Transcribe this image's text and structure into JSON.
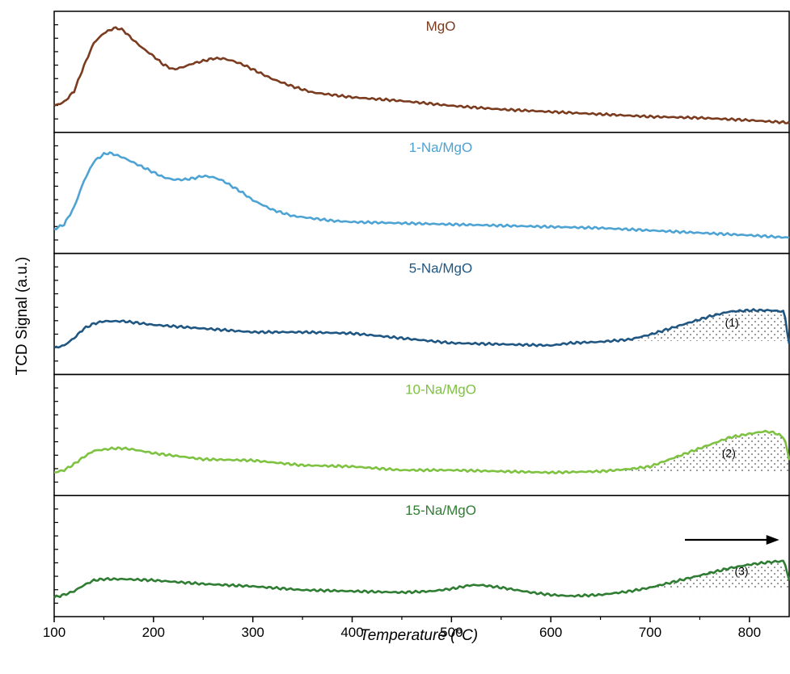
{
  "chart_data": {
    "type": "line",
    "title": "",
    "xlabel": "Temperature (°C)",
    "ylabel": "TCD Signal (a.u.)",
    "xlim": [
      100,
      840
    ],
    "xticks": [
      100,
      200,
      300,
      400,
      500,
      600,
      700,
      800
    ],
    "grid": false,
    "layout": "stacked panels",
    "arrow": {
      "from": 735,
      "to": 830,
      "direction": "right"
    },
    "series": [
      {
        "name": "MgO",
        "color": "#7a3b1f",
        "x": [
          100,
          110,
          120,
          130,
          140,
          150,
          160,
          165,
          170,
          180,
          190,
          200,
          210,
          220,
          230,
          240,
          250,
          260,
          270,
          280,
          290,
          300,
          320,
          340,
          360,
          380,
          400,
          450,
          500,
          550,
          600,
          650,
          700,
          750,
          800,
          840
        ],
        "y": [
          0.22,
          0.25,
          0.34,
          0.55,
          0.74,
          0.82,
          0.86,
          0.86,
          0.84,
          0.76,
          0.69,
          0.63,
          0.56,
          0.52,
          0.54,
          0.57,
          0.59,
          0.61,
          0.61,
          0.59,
          0.56,
          0.52,
          0.44,
          0.38,
          0.33,
          0.31,
          0.29,
          0.26,
          0.22,
          0.19,
          0.17,
          0.15,
          0.13,
          0.12,
          0.1,
          0.08
        ]
      },
      {
        "name": "1-Na/MgO",
        "color": "#4da3d3",
        "x": [
          100,
          110,
          120,
          130,
          140,
          150,
          155,
          160,
          170,
          180,
          190,
          200,
          210,
          220,
          230,
          240,
          250,
          260,
          270,
          280,
          290,
          300,
          320,
          340,
          360,
          380,
          400,
          450,
          500,
          550,
          600,
          650,
          700,
          750,
          800,
          840
        ],
        "y": [
          0.2,
          0.24,
          0.38,
          0.6,
          0.76,
          0.82,
          0.83,
          0.82,
          0.79,
          0.75,
          0.71,
          0.67,
          0.63,
          0.61,
          0.61,
          0.62,
          0.64,
          0.63,
          0.6,
          0.55,
          0.5,
          0.44,
          0.36,
          0.31,
          0.29,
          0.27,
          0.26,
          0.25,
          0.24,
          0.23,
          0.22,
          0.21,
          0.19,
          0.17,
          0.15,
          0.13
        ]
      },
      {
        "name": "5-Na/MgO",
        "color": "#1f5682",
        "x": [
          100,
          110,
          120,
          130,
          140,
          150,
          160,
          170,
          180,
          200,
          250,
          300,
          350,
          400,
          450,
          500,
          550,
          600,
          620,
          650,
          680,
          700,
          720,
          740,
          760,
          780,
          800,
          820,
          835,
          840
        ],
        "y": [
          0.22,
          0.24,
          0.3,
          0.38,
          0.42,
          0.44,
          0.44,
          0.44,
          0.43,
          0.41,
          0.38,
          0.35,
          0.35,
          0.34,
          0.3,
          0.26,
          0.25,
          0.24,
          0.26,
          0.27,
          0.29,
          0.33,
          0.38,
          0.43,
          0.48,
          0.52,
          0.53,
          0.53,
          0.52,
          0.25
        ]
      },
      {
        "name": "10-Na/MgO",
        "color": "#7ec241",
        "x": [
          100,
          110,
          120,
          130,
          140,
          150,
          160,
          170,
          180,
          200,
          250,
          300,
          350,
          400,
          450,
          500,
          550,
          600,
          650,
          680,
          700,
          720,
          740,
          760,
          780,
          800,
          815,
          825,
          835,
          840
        ],
        "y": [
          0.19,
          0.21,
          0.26,
          0.32,
          0.37,
          0.38,
          0.39,
          0.39,
          0.38,
          0.35,
          0.3,
          0.29,
          0.25,
          0.24,
          0.21,
          0.21,
          0.2,
          0.19,
          0.2,
          0.22,
          0.24,
          0.3,
          0.36,
          0.42,
          0.48,
          0.51,
          0.53,
          0.52,
          0.48,
          0.3
        ]
      },
      {
        "name": "15-Na/MgO",
        "color": "#2e7d32",
        "x": [
          100,
          110,
          120,
          130,
          140,
          150,
          160,
          170,
          200,
          250,
          300,
          350,
          400,
          450,
          480,
          500,
          520,
          530,
          550,
          580,
          600,
          620,
          650,
          680,
          700,
          720,
          740,
          760,
          780,
          800,
          820,
          835,
          840
        ],
        "y": [
          0.16,
          0.18,
          0.21,
          0.26,
          0.3,
          0.31,
          0.31,
          0.31,
          0.3,
          0.27,
          0.25,
          0.22,
          0.21,
          0.2,
          0.21,
          0.23,
          0.26,
          0.26,
          0.24,
          0.2,
          0.18,
          0.17,
          0.18,
          0.21,
          0.24,
          0.28,
          0.32,
          0.36,
          0.4,
          0.43,
          0.45,
          0.46,
          0.3
        ]
      }
    ],
    "shaded_regions": [
      {
        "label": "(1)",
        "series": "5-Na/MgO",
        "from": 660,
        "to": 840
      },
      {
        "label": "(2)",
        "series": "10-Na/MgO",
        "from": 650,
        "to": 840
      },
      {
        "label": "(3)",
        "series": "15-Na/MgO",
        "from": 690,
        "to": 840
      }
    ]
  }
}
